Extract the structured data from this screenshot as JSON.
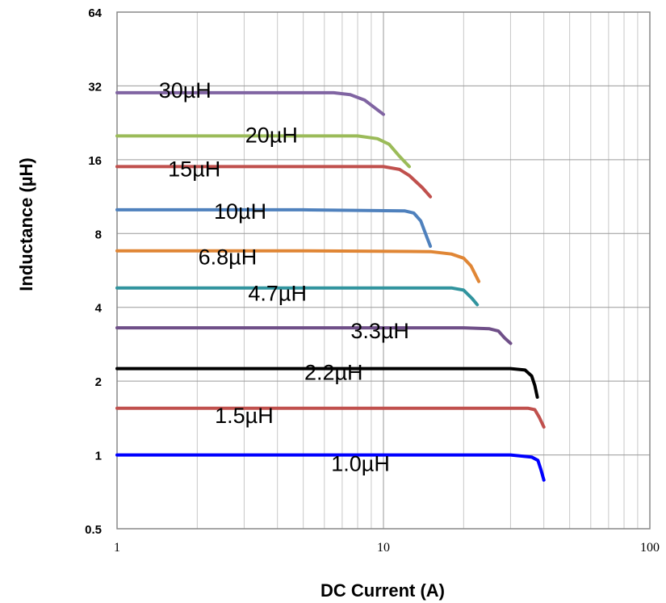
{
  "chart_data": {
    "type": "line",
    "title": "",
    "xlabel": "DC Current (A)",
    "ylabel": "Inductance (µH)",
    "x_scale": "log",
    "y_scale": "log",
    "xlim": [
      1,
      100
    ],
    "ylim": [
      0.5,
      64
    ],
    "x_ticks": [
      "1",
      "10",
      "100"
    ],
    "y_ticks": [
      "0.5",
      "1",
      "2",
      "4",
      "8",
      "16",
      "32",
      "64"
    ],
    "grid": true,
    "series": [
      {
        "name": "30µH",
        "color": "#8064a2",
        "x": [
          1,
          3,
          6.5,
          7.5,
          8.5,
          9.3,
          10
        ],
        "y": [
          30,
          30,
          30,
          29.5,
          28,
          26,
          24.5
        ]
      },
      {
        "name": "20µH",
        "color": "#9bbb59",
        "x": [
          1,
          5,
          8,
          9.5,
          10.5,
          11.5,
          12.5
        ],
        "y": [
          20,
          20,
          20,
          19.5,
          18.5,
          16.5,
          15
        ]
      },
      {
        "name": "15µH",
        "color": "#c0504d",
        "x": [
          1,
          5,
          10,
          11.5,
          12.5,
          14,
          15
        ],
        "y": [
          15,
          15,
          15,
          14.6,
          13.8,
          12.3,
          11.3
        ]
      },
      {
        "name": "10µH",
        "color": "#4f81bd",
        "x": [
          1,
          5,
          12,
          13,
          13.8,
          14.5,
          15
        ],
        "y": [
          10,
          10,
          9.9,
          9.7,
          9.0,
          7.8,
          7.1
        ]
      },
      {
        "name": "6.8µH",
        "color": "#e08635",
        "x": [
          1,
          5,
          15,
          18,
          20,
          21.3,
          22.8
        ],
        "y": [
          6.8,
          6.8,
          6.75,
          6.6,
          6.35,
          5.9,
          5.1
        ]
      },
      {
        "name": "4.7µH",
        "color": "#31949e",
        "x": [
          1,
          5,
          18,
          20,
          21.5,
          22.5
        ],
        "y": [
          4.8,
          4.8,
          4.8,
          4.7,
          4.35,
          4.1
        ]
      },
      {
        "name": "3.3µH",
        "color": "#6f4f88",
        "x": [
          1,
          5,
          20,
          25,
          27,
          28.5,
          30
        ],
        "y": [
          3.3,
          3.3,
          3.3,
          3.27,
          3.2,
          3.0,
          2.85
        ]
      },
      {
        "name": "2.2µH",
        "color": "#000000",
        "x": [
          1,
          5,
          30,
          34,
          36,
          37,
          37.8
        ],
        "y": [
          2.25,
          2.25,
          2.25,
          2.22,
          2.1,
          1.92,
          1.72
        ]
      },
      {
        "name": "1.5µH",
        "color": "#c0504d",
        "x": [
          1,
          5,
          35,
          37,
          38.5,
          40
        ],
        "y": [
          1.55,
          1.55,
          1.55,
          1.53,
          1.42,
          1.3
        ]
      },
      {
        "name": "1.0µH",
        "color": "#0000ff",
        "x": [
          1,
          5,
          30,
          36,
          38,
          39,
          40
        ],
        "y": [
          1.0,
          1.0,
          1.0,
          0.98,
          0.95,
          0.87,
          0.79
        ]
      }
    ]
  }
}
